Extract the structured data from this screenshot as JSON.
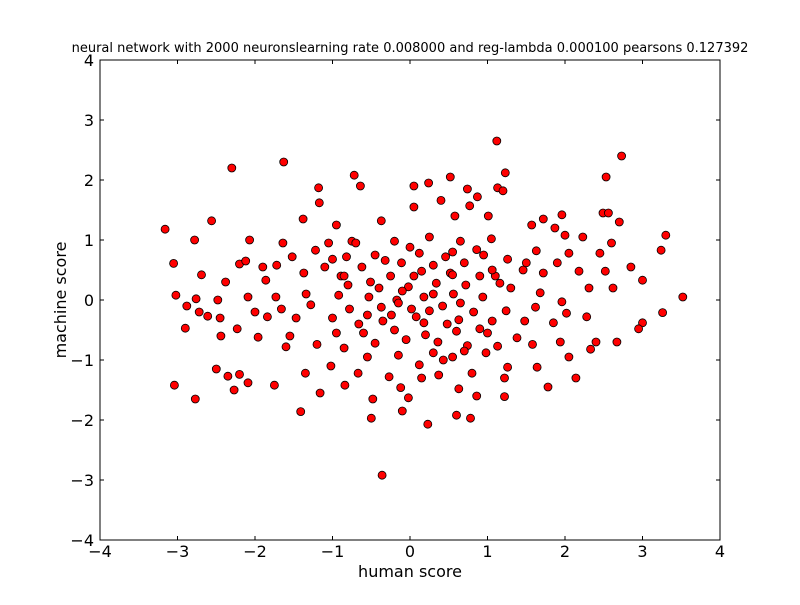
{
  "chart_data": {
    "type": "scatter",
    "title": "neural network with 2000 neuronslearning rate 0.008000 and reg-lambda 0.000100 pearsons 0.127392",
    "xlabel": "human score",
    "ylabel": "machine score",
    "xlim": [
      -4,
      4
    ],
    "ylim": [
      -4,
      4
    ],
    "xticks": [
      "−4",
      "−3",
      "−2",
      "−1",
      "0",
      "1",
      "2",
      "3",
      "4"
    ],
    "yticks": [
      "−4",
      "−3",
      "−2",
      "−1",
      "0",
      "1",
      "2",
      "3",
      "4"
    ],
    "grid": false,
    "legend": "none",
    "marker_color": "#ff0000",
    "marker_edge_color": "#000000",
    "series": [
      {
        "points": [
          [
            1.12,
            2.65
          ],
          [
            -1.63,
            2.3
          ],
          [
            2.73,
            2.4
          ],
          [
            -2.3,
            2.2
          ],
          [
            1.23,
            2.12
          ],
          [
            -0.72,
            2.08
          ],
          [
            0.52,
            2.05
          ],
          [
            2.53,
            2.05
          ],
          [
            0.24,
            1.95
          ],
          [
            -0.64,
            1.9
          ],
          [
            0.05,
            1.9
          ],
          [
            -1.18,
            1.87
          ],
          [
            1.13,
            1.87
          ],
          [
            1.2,
            1.82
          ],
          [
            0.74,
            1.85
          ],
          [
            0.87,
            1.72
          ],
          [
            -1.17,
            1.62
          ],
          [
            0.4,
            1.66
          ],
          [
            0.77,
            1.57
          ],
          [
            0.05,
            1.55
          ],
          [
            -1.38,
            1.35
          ],
          [
            -2.56,
            1.32
          ],
          [
            1.72,
            1.35
          ],
          [
            1.96,
            1.42
          ],
          [
            2.49,
            1.45
          ],
          [
            2.56,
            1.45
          ],
          [
            0.58,
            1.4
          ],
          [
            1.01,
            1.4
          ],
          [
            -3.16,
            1.18
          ],
          [
            -0.95,
            1.25
          ],
          [
            -0.37,
            1.32
          ],
          [
            1.57,
            1.25
          ],
          [
            1.87,
            1.2
          ],
          [
            2.7,
            1.3
          ],
          [
            -2.78,
            1.0
          ],
          [
            -2.07,
            1.0
          ],
          [
            -1.64,
            0.95
          ],
          [
            -1.05,
            0.95
          ],
          [
            -0.75,
            0.98
          ],
          [
            2.0,
            1.08
          ],
          [
            2.23,
            1.05
          ],
          [
            2.6,
            0.95
          ],
          [
            3.3,
            1.08
          ],
          [
            -3.05,
            0.61
          ],
          [
            -2.69,
            0.42
          ],
          [
            -2.2,
            0.6
          ],
          [
            -1.9,
            0.55
          ],
          [
            -1.37,
            0.45
          ],
          [
            -0.89,
            0.4
          ],
          [
            -0.51,
            0.3
          ],
          [
            0.05,
            0.4
          ],
          [
            0.52,
            0.45
          ],
          [
            1.1,
            0.4
          ],
          [
            1.46,
            0.5
          ],
          [
            1.72,
            0.45
          ],
          [
            2.18,
            0.48
          ],
          [
            2.52,
            0.48
          ],
          [
            2.85,
            0.55
          ],
          [
            3.24,
            0.83
          ],
          [
            -2.9,
            -0.47
          ],
          [
            -2.72,
            -0.2
          ],
          [
            -2.45,
            -0.3
          ],
          [
            -2.23,
            -0.48
          ],
          [
            -1.96,
            -0.62
          ],
          [
            -1.55,
            -0.6
          ],
          [
            -1.2,
            -0.74
          ],
          [
            -0.85,
            -0.8
          ],
          [
            -0.45,
            -0.72
          ],
          [
            -0.05,
            -0.66
          ],
          [
            0.36,
            -0.7
          ],
          [
            0.74,
            -0.76
          ],
          [
            1.13,
            -0.77
          ],
          [
            1.58,
            -0.74
          ],
          [
            1.94,
            -0.7
          ],
          [
            2.4,
            -0.7
          ],
          [
            2.67,
            -0.7
          ],
          [
            3.0,
            -0.38
          ],
          [
            3.26,
            -0.21
          ],
          [
            -3.02,
            0.08
          ],
          [
            -2.88,
            -0.1
          ],
          [
            -2.61,
            -0.27
          ],
          [
            -2.35,
            -1.27
          ],
          [
            -2.2,
            -1.24
          ],
          [
            -2.27,
            -1.5
          ],
          [
            -1.75,
            -1.42
          ],
          [
            -1.35,
            -1.22
          ],
          [
            -1.16,
            -1.55
          ],
          [
            -0.84,
            -1.42
          ],
          [
            -0.48,
            -1.65
          ],
          [
            -0.12,
            -1.46
          ],
          [
            0.15,
            -1.3
          ],
          [
            0.37,
            -1.25
          ],
          [
            0.63,
            -1.48
          ],
          [
            0.86,
            -1.6
          ],
          [
            1.22,
            -1.3
          ],
          [
            1.78,
            -1.45
          ],
          [
            2.14,
            -1.3
          ],
          [
            3.52,
            0.05
          ],
          [
            3.0,
            0.33
          ],
          [
            2.62,
            0.2
          ],
          [
            2.31,
            0.2
          ],
          [
            1.96,
            -0.03
          ],
          [
            1.68,
            0.12
          ],
          [
            1.3,
            0.2
          ],
          [
            0.94,
            0.05
          ],
          [
            0.56,
            0.1
          ],
          [
            0.18,
            0.05
          ],
          [
            -0.17,
            0.0
          ],
          [
            -0.53,
            0.05
          ],
          [
            -0.92,
            0.08
          ],
          [
            -1.34,
            0.1
          ],
          [
            -1.73,
            0.05
          ],
          [
            -2.09,
            0.05
          ],
          [
            -2.48,
            0.0
          ],
          [
            -2.76,
            0.02
          ],
          [
            -3.04,
            -1.42
          ],
          [
            -2.77,
            -1.65
          ],
          [
            -1.41,
            -1.86
          ],
          [
            -0.5,
            -1.97
          ],
          [
            -0.1,
            -1.85
          ],
          [
            0.23,
            -2.07
          ],
          [
            0.6,
            -1.92
          ],
          [
            0.78,
            -1.97
          ],
          [
            1.22,
            -1.61
          ],
          [
            -0.36,
            -2.92
          ],
          [
            -0.02,
            -1.63
          ],
          [
            0.43,
            -1.0
          ],
          [
            0.8,
            -1.22
          ],
          [
            1.26,
            -1.12
          ],
          [
            1.64,
            -1.12
          ],
          [
            2.05,
            -0.95
          ],
          [
            2.95,
            -0.48
          ],
          [
            -2.5,
            -1.15
          ],
          [
            -2.09,
            -1.38
          ],
          [
            -1.6,
            -0.78
          ],
          [
            -1.02,
            -1.1
          ],
          [
            -0.67,
            -1.22
          ],
          [
            -0.27,
            -1.28
          ],
          [
            0.12,
            -1.08
          ],
          [
            0.55,
            -0.95
          ],
          [
            0.98,
            -0.88
          ],
          [
            1.38,
            -0.63
          ],
          [
            2.33,
            -0.82
          ],
          [
            -2.38,
            0.3
          ],
          [
            -1.86,
            0.33
          ],
          [
            -1.52,
            0.72
          ],
          [
            -1.22,
            0.83
          ],
          [
            -0.82,
            0.72
          ],
          [
            -0.32,
            0.66
          ],
          [
            0.12,
            0.78
          ],
          [
            0.46,
            0.72
          ],
          [
            0.86,
            0.84
          ],
          [
            1.26,
            0.68
          ],
          [
            1.63,
            0.82
          ],
          [
            2.05,
            0.78
          ],
          [
            2.45,
            0.78
          ],
          [
            -2.12,
            0.65
          ],
          [
            -1.72,
            0.58
          ],
          [
            -1.1,
            0.55
          ],
          [
            -0.62,
            0.55
          ],
          [
            -0.11,
            0.62
          ],
          [
            0.3,
            0.58
          ],
          [
            0.7,
            0.62
          ],
          [
            1.06,
            0.5
          ],
          [
            1.5,
            0.62
          ],
          [
            1.9,
            0.62
          ],
          [
            -2.44,
            -0.6
          ],
          [
            -1.84,
            -0.28
          ],
          [
            -1.47,
            -0.3
          ],
          [
            -1.0,
            -0.3
          ],
          [
            -0.66,
            -0.4
          ],
          [
            -0.24,
            -0.25
          ],
          [
            0.18,
            -0.38
          ],
          [
            0.63,
            -0.33
          ],
          [
            1.06,
            -0.35
          ],
          [
            1.48,
            -0.35
          ],
          [
            1.85,
            -0.38
          ],
          [
            2.28,
            -0.28
          ],
          [
            -2.0,
            -0.2
          ],
          [
            -1.66,
            -0.15
          ],
          [
            -1.28,
            -0.08
          ],
          [
            -0.78,
            -0.15
          ],
          [
            -0.37,
            -0.12
          ],
          [
            0.02,
            -0.15
          ],
          [
            0.42,
            -0.1
          ],
          [
            0.82,
            -0.2
          ],
          [
            1.24,
            -0.18
          ],
          [
            1.62,
            -0.12
          ],
          [
            2.02,
            -0.22
          ],
          [
            -0.8,
            0.25
          ],
          [
            -0.4,
            0.2
          ],
          [
            -0.02,
            0.22
          ],
          [
            0.34,
            0.28
          ],
          [
            0.72,
            0.25
          ],
          [
            1.16,
            0.28
          ],
          [
            -0.6,
            -0.55
          ],
          [
            -0.2,
            -0.5
          ],
          [
            0.2,
            -0.58
          ],
          [
            0.6,
            -0.52
          ],
          [
            1.0,
            -0.55
          ],
          [
            -0.7,
            0.95
          ],
          [
            -0.2,
            0.98
          ],
          [
            0.25,
            1.05
          ],
          [
            0.65,
            0.98
          ],
          [
            1.05,
            1.02
          ],
          [
            -0.55,
            -0.95
          ],
          [
            -0.15,
            -0.92
          ],
          [
            0.3,
            -0.88
          ],
          [
            0.7,
            -0.85
          ],
          [
            -1.0,
            0.68
          ],
          [
            -0.45,
            0.75
          ],
          [
            0.0,
            0.88
          ],
          [
            0.55,
            0.8
          ],
          [
            0.95,
            0.75
          ],
          [
            -0.95,
            -0.55
          ],
          [
            -0.35,
            -0.35
          ],
          [
            0.08,
            -0.28
          ],
          [
            0.48,
            -0.4
          ],
          [
            0.9,
            -0.48
          ],
          [
            -0.25,
            0.4
          ],
          [
            0.15,
            0.48
          ],
          [
            0.55,
            0.42
          ],
          [
            0.9,
            0.4
          ],
          [
            -0.85,
            0.4
          ],
          [
            -0.1,
            0.15
          ],
          [
            0.3,
            0.1
          ],
          [
            0.65,
            -0.05
          ],
          [
            -0.55,
            -0.25
          ],
          [
            -0.15,
            -0.05
          ],
          [
            0.25,
            -0.18
          ]
        ]
      }
    ]
  }
}
